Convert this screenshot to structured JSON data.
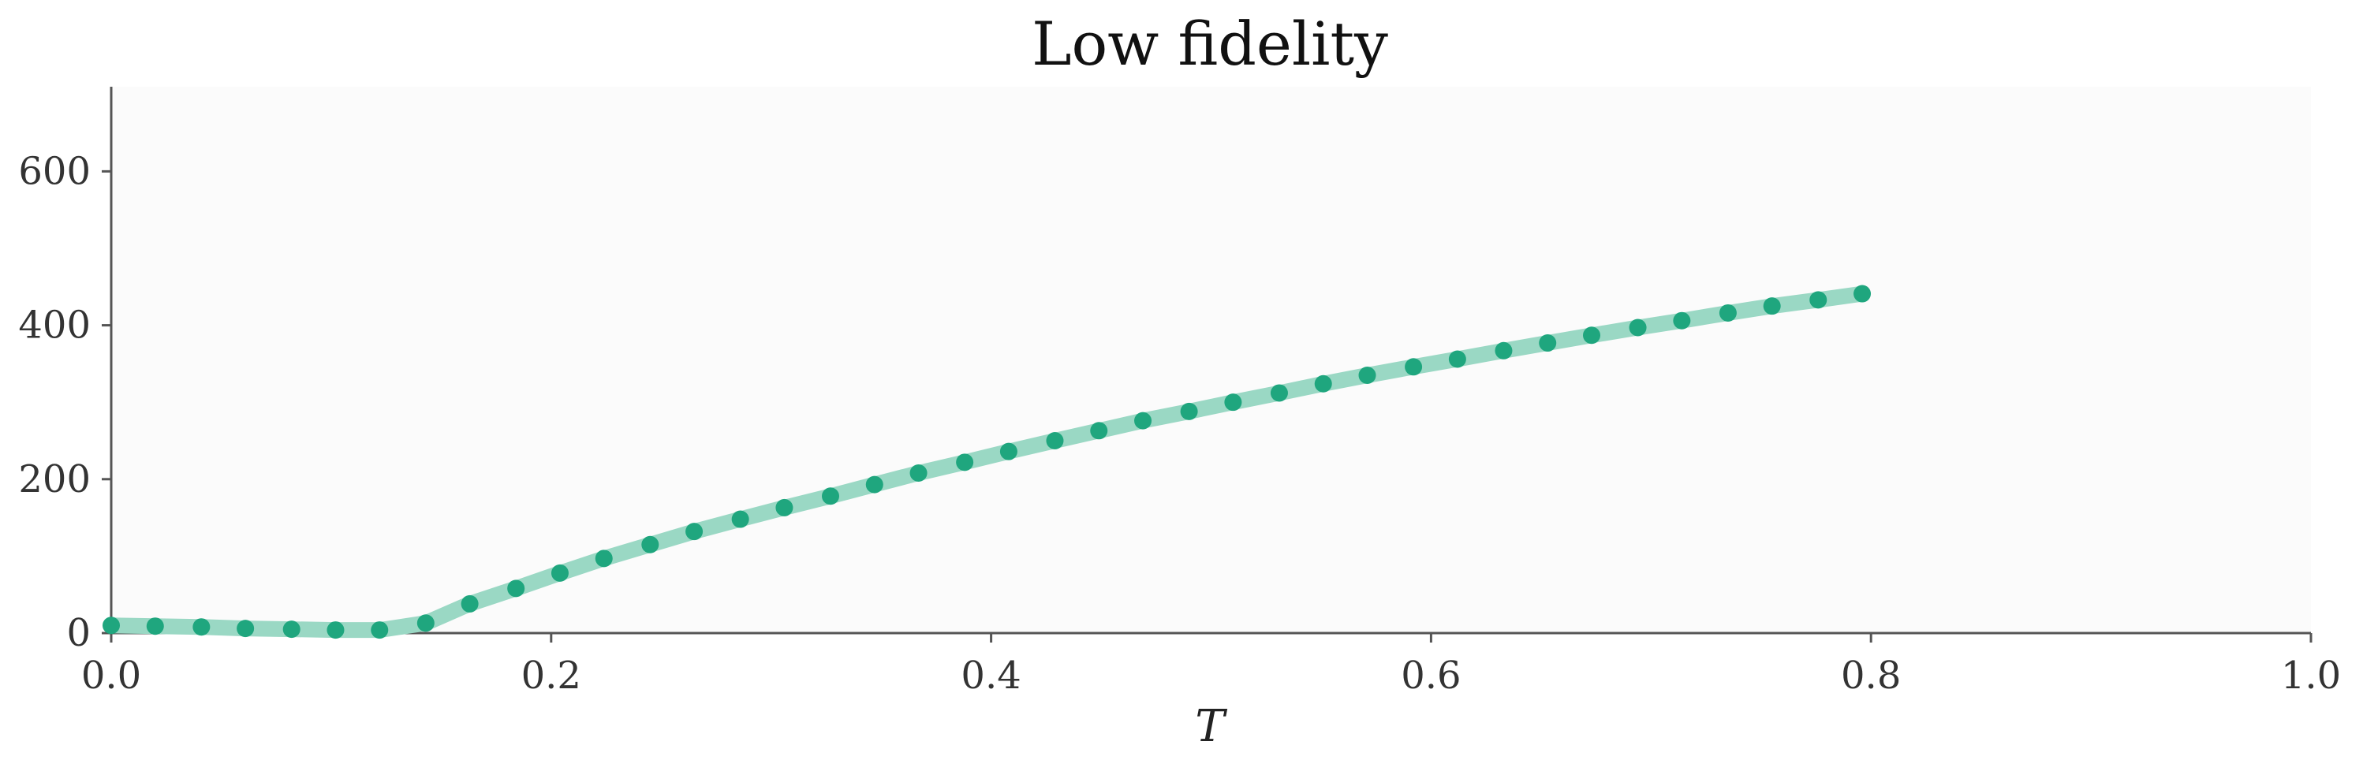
{
  "chart_data": {
    "type": "line",
    "title": "Low fidelity",
    "xlabel": "T",
    "ylabel": "",
    "xlim": [
      0.0,
      1.0
    ],
    "ylim": [
      0,
      710
    ],
    "xticks": [
      0.0,
      0.2,
      0.4,
      0.6,
      0.8,
      1.0
    ],
    "xtick_labels": [
      "0.0",
      "0.2",
      "0.4",
      "0.6",
      "0.8",
      "1.0"
    ],
    "yticks": [
      0,
      200,
      400,
      600
    ],
    "ytick_labels": [
      "0",
      "200",
      "400",
      "600"
    ],
    "grid": false,
    "legend": "none",
    "colors": {
      "line": "#9ad8c4",
      "marker": "#1fa67e",
      "plot_bg": "#fbfbfb",
      "axis": "#555555"
    },
    "series": [
      {
        "x": [
          0.0,
          0.02,
          0.041,
          0.061,
          0.082,
          0.102,
          0.122,
          0.143,
          0.163,
          0.184,
          0.204,
          0.224,
          0.245,
          0.265,
          0.286,
          0.306,
          0.327,
          0.347,
          0.367,
          0.388,
          0.408,
          0.429,
          0.449,
          0.469,
          0.49,
          0.51,
          0.531,
          0.551,
          0.571,
          0.592,
          0.612,
          0.633,
          0.653,
          0.673,
          0.694,
          0.714,
          0.735,
          0.755,
          0.776,
          0.796
        ],
        "values": [
          10,
          9,
          8,
          6,
          5,
          4,
          4,
          13,
          38,
          58,
          78,
          97,
          115,
          132,
          148,
          163,
          178,
          193,
          208,
          222,
          236,
          250,
          263,
          276,
          288,
          300,
          312,
          324,
          335,
          346,
          356,
          367,
          377,
          387,
          397,
          406,
          416,
          425,
          433,
          441
        ]
      }
    ]
  }
}
